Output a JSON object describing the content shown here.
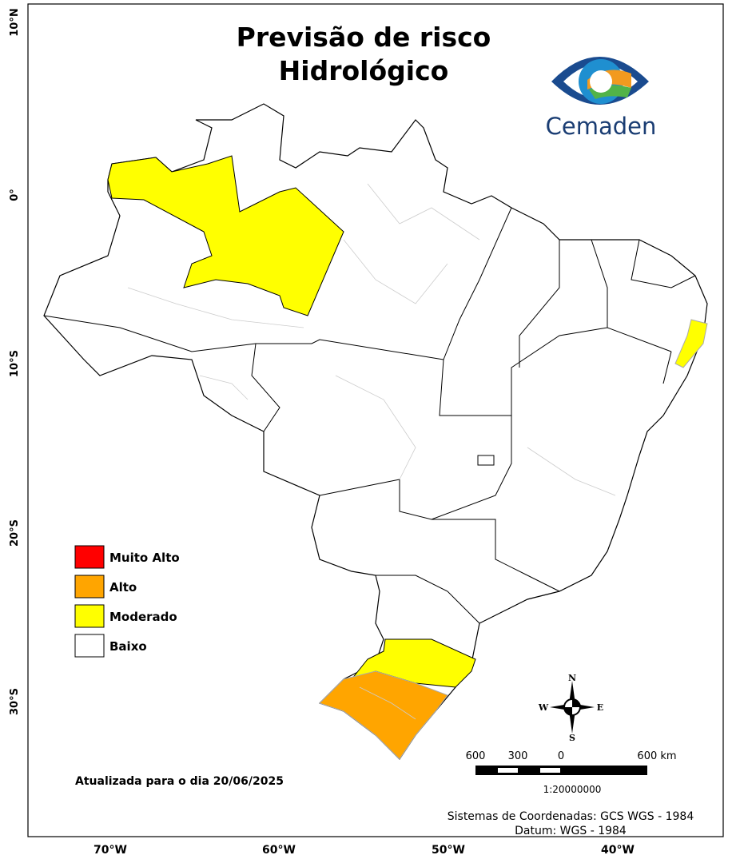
{
  "header": {
    "title_lines": [
      "Previsão de risco",
      "Hidrológico"
    ],
    "logo_text": "Cemaden"
  },
  "legend": {
    "items": [
      {
        "label": "Muito Alto",
        "color": "#ff0000"
      },
      {
        "label": "Alto",
        "color": "#ffa500"
      },
      {
        "label": "Moderado",
        "color": "#ffff00"
      },
      {
        "label": "Baixo",
        "color": "#ffffff"
      }
    ]
  },
  "axes": {
    "latitude_labels": [
      "10°N",
      "0°",
      "10°S",
      "20°S",
      "30°S"
    ],
    "longitude_labels": [
      "70°W",
      "60°W",
      "50°W",
      "40°W"
    ]
  },
  "updated": "Atualizada para o dia 20/06/2025",
  "compass": {
    "north": "N",
    "south": "S",
    "east": "E",
    "west": "W"
  },
  "scale_bar": {
    "labels": [
      "600",
      "300",
      "0",
      "600 km"
    ],
    "ratio": "1:20000000"
  },
  "footer": {
    "lines": [
      "Sistemas de Coordenadas: GCS WGS - 1984",
      "Datum: WGS - 1984"
    ]
  }
}
